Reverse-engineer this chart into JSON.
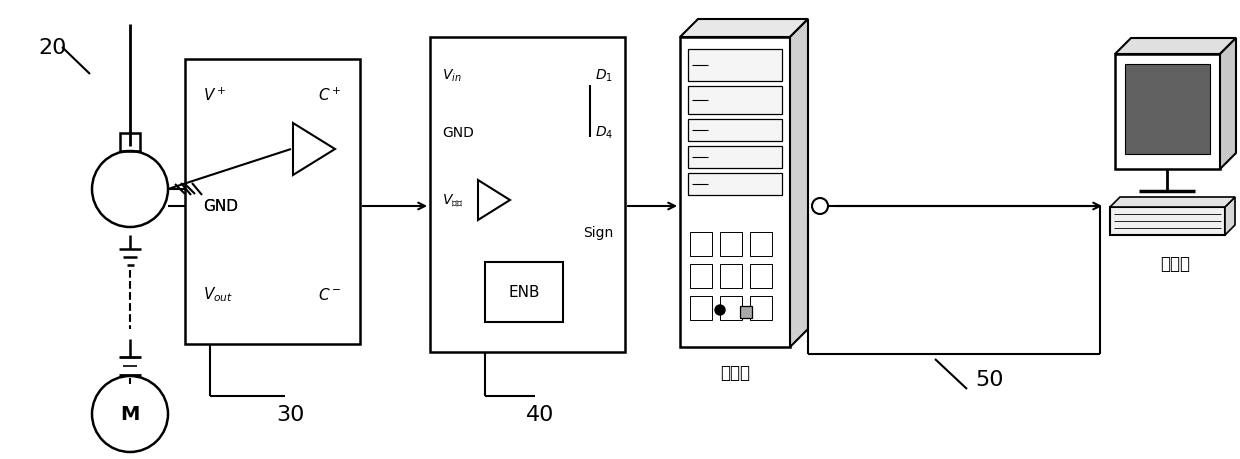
{
  "bg_color": "#ffffff",
  "line_color": "#000000",
  "label_20": "20",
  "label_30": "30",
  "label_40": "40",
  "label_50": "50",
  "label_server": "服务器",
  "label_workstation": "工作站",
  "figw": 12.4,
  "figh": 4.6
}
